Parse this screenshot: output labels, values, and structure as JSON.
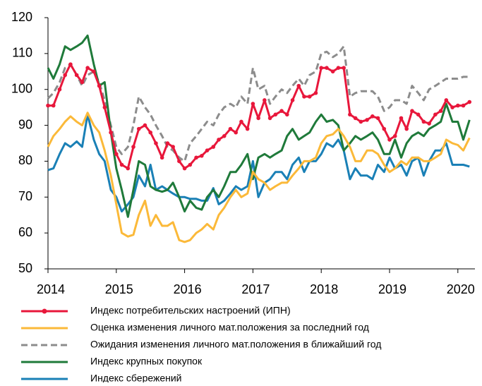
{
  "chart_data": {
    "type": "line",
    "x": [
      2014,
      2014.08,
      2014.17,
      2014.25,
      2014.33,
      2014.42,
      2014.5,
      2014.58,
      2014.67,
      2014.75,
      2014.83,
      2014.92,
      2015,
      2015.08,
      2015.17,
      2015.25,
      2015.33,
      2015.42,
      2015.5,
      2015.58,
      2015.67,
      2015.75,
      2015.83,
      2015.92,
      2016,
      2016.08,
      2016.17,
      2016.25,
      2016.33,
      2016.42,
      2016.5,
      2016.58,
      2016.67,
      2016.75,
      2016.83,
      2016.92,
      2017,
      2017.08,
      2017.17,
      2017.25,
      2017.33,
      2017.42,
      2017.5,
      2017.58,
      2017.67,
      2017.75,
      2017.83,
      2017.92,
      2018,
      2018.08,
      2018.17,
      2018.25,
      2018.33,
      2018.42,
      2018.5,
      2018.58,
      2018.67,
      2018.75,
      2018.83,
      2018.92,
      2019,
      2019.08,
      2019.17,
      2019.25,
      2019.33,
      2019.42,
      2019.5,
      2019.58,
      2019.67,
      2019.75,
      2019.83,
      2019.92,
      2020,
      2020.08,
      2020.17
    ],
    "series": [
      {
        "name": "Индекс потребительских настроений (ИПН)",
        "color": "#e8173b",
        "markers": true,
        "values": [
          95.5,
          95.5,
          100,
          104,
          107,
          104,
          102,
          106,
          105,
          101,
          95,
          88,
          82,
          79,
          78,
          84,
          89,
          90,
          88,
          85,
          81,
          85,
          84,
          80,
          78,
          79,
          81,
          81.5,
          83,
          84,
          86,
          87,
          89,
          88,
          91,
          89,
          96,
          92,
          97,
          92,
          93,
          94,
          93,
          97,
          101,
          98,
          98,
          99,
          106,
          106,
          105,
          106,
          106,
          93,
          92,
          91,
          91.5,
          92.5,
          92,
          89,
          86,
          87,
          92,
          89,
          94,
          93,
          91,
          90.5,
          93,
          94,
          97,
          95,
          95.5,
          95.5,
          96.5
        ]
      },
      {
        "name": "Оценка изменения личного мат.положения за последний год",
        "color": "#fbb939",
        "values": [
          84,
          87,
          89,
          91,
          92.5,
          91,
          90,
          93.5,
          90,
          88,
          83,
          76,
          68,
          60,
          59,
          59.5,
          65,
          69,
          62,
          65,
          62,
          62,
          63,
          58,
          57.5,
          58,
          60,
          61,
          62.5,
          61,
          65,
          67,
          70,
          72,
          70,
          71,
          77,
          75,
          74,
          72,
          73,
          74,
          74,
          76,
          78,
          80,
          80,
          81,
          85,
          87,
          87.5,
          89,
          87,
          84,
          80,
          80,
          83,
          83,
          82,
          79,
          77,
          78,
          80,
          79,
          81,
          81,
          80,
          80,
          81,
          82,
          86,
          85,
          84.5,
          83,
          86.5
        ]
      },
      {
        "name": "Ожидания изменения личного мат.положения в ближайший год",
        "color": "#8c8c8c",
        "dashed": true,
        "values": [
          97.5,
          99,
          102,
          106,
          107,
          104,
          101,
          104,
          105,
          102,
          97,
          90,
          84,
          82,
          84,
          90,
          98,
          95,
          93,
          90,
          87,
          84,
          83,
          81,
          80,
          85,
          87,
          89,
          91,
          90,
          93,
          95,
          96,
          95,
          98,
          96,
          106,
          100,
          101,
          96,
          98,
          100,
          99,
          101,
          103,
          101,
          104,
          105,
          110,
          110.5,
          109,
          110,
          112,
          98,
          99,
          99.5,
          99.5,
          99.5,
          98,
          94,
          95,
          97,
          97,
          96,
          101,
          99,
          97,
          100,
          101,
          102,
          103,
          103,
          103,
          103.5,
          103.5
        ]
      },
      {
        "name": "Индекс крупных покупок",
        "color": "#1f7a3a",
        "values": [
          106,
          103,
          107,
          112,
          111,
          112,
          113,
          115,
          107,
          101,
          102,
          88,
          78,
          72,
          64.5,
          72,
          80,
          79,
          73,
          72,
          71.5,
          72,
          74,
          70,
          66,
          69,
          67,
          66.5,
          70,
          72,
          70,
          73,
          77,
          77,
          79,
          82,
          75,
          81,
          82,
          81,
          82,
          83,
          87,
          89,
          86,
          87,
          88,
          91,
          93,
          91,
          91.5,
          90,
          83,
          85,
          87,
          86,
          87,
          88,
          86,
          82,
          82,
          86,
          81,
          85,
          87,
          88,
          87,
          89,
          90,
          91,
          96,
          91,
          91,
          86,
          91.5
        ]
      },
      {
        "name": "Индекс сбережений",
        "color": "#1a80b6",
        "values": [
          77.5,
          78,
          82,
          85,
          84,
          85.5,
          84,
          93,
          86,
          82,
          80,
          72,
          70,
          66,
          68,
          70,
          76,
          73,
          79,
          72,
          73,
          72,
          71,
          70,
          70,
          69.5,
          69.5,
          69,
          69,
          72.5,
          68,
          69,
          71,
          73,
          72,
          73,
          80,
          70,
          74,
          75,
          77,
          77,
          75,
          79,
          81,
          77,
          80,
          80,
          82,
          85,
          84,
          86,
          83,
          75,
          78,
          76,
          76,
          75,
          79,
          77,
          81,
          78,
          79,
          76,
          80,
          81,
          76,
          80,
          83,
          83,
          85,
          79,
          79,
          79,
          78.5
        ]
      }
    ],
    "xlim": [
      2014,
      2020.25
    ],
    "xticks": [
      2014,
      2015,
      2016,
      2017,
      2018,
      2019,
      2020
    ],
    "ylim": [
      50,
      120
    ],
    "yticks": [
      50,
      60,
      70,
      80,
      90,
      100,
      110,
      120
    ],
    "grid": false
  }
}
